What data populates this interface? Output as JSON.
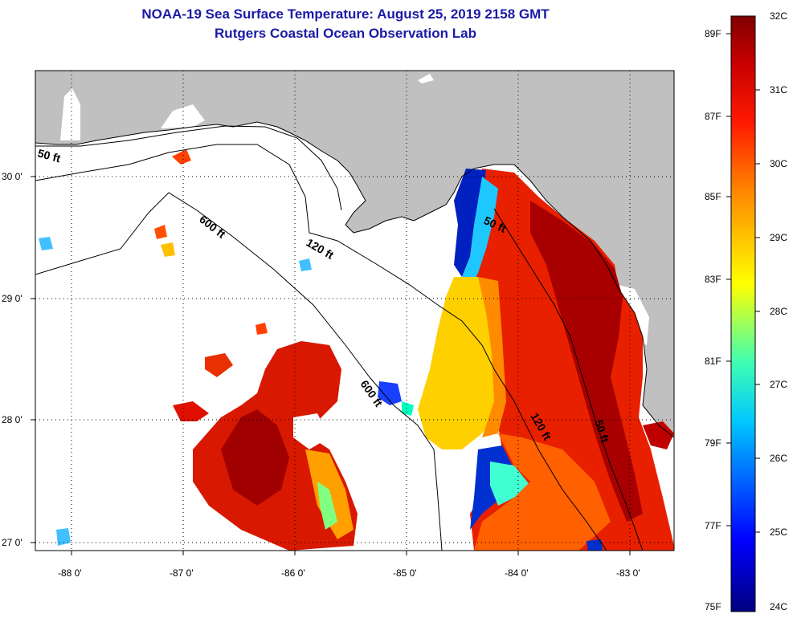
{
  "title_line1": "NOAA-19 Sea Surface Temperature:  August 25, 2019 2158 GMT",
  "title_line2": "Rutgers Coastal Ocean Observation Lab",
  "longitude_labels": [
    "-88 0'",
    "-87 0'",
    "-86 0'",
    "-85 0'",
    "-84 0'",
    "-83 0'"
  ],
  "latitude_labels": [
    "30 0'",
    "29 0'",
    "28 0'",
    "27 0'"
  ],
  "contour_labels": [
    "50 ft",
    "600 ft",
    "120 ft",
    "50 ft",
    "600 ft",
    "120 ft",
    "50 ft"
  ],
  "colorbar": {
    "fahrenheit": [
      "89F",
      "87F",
      "85F",
      "83F",
      "81F",
      "79F",
      "77F",
      "75F"
    ],
    "celsius": [
      "32C",
      "31C",
      "30C",
      "29C",
      "28C",
      "27C",
      "26C",
      "25C",
      "24C"
    ],
    "range_c": [
      24,
      32
    ]
  },
  "colors": {
    "land": "#c0c0c0",
    "water_no_data": "#ffffff",
    "title": "#1a1aa6"
  }
}
